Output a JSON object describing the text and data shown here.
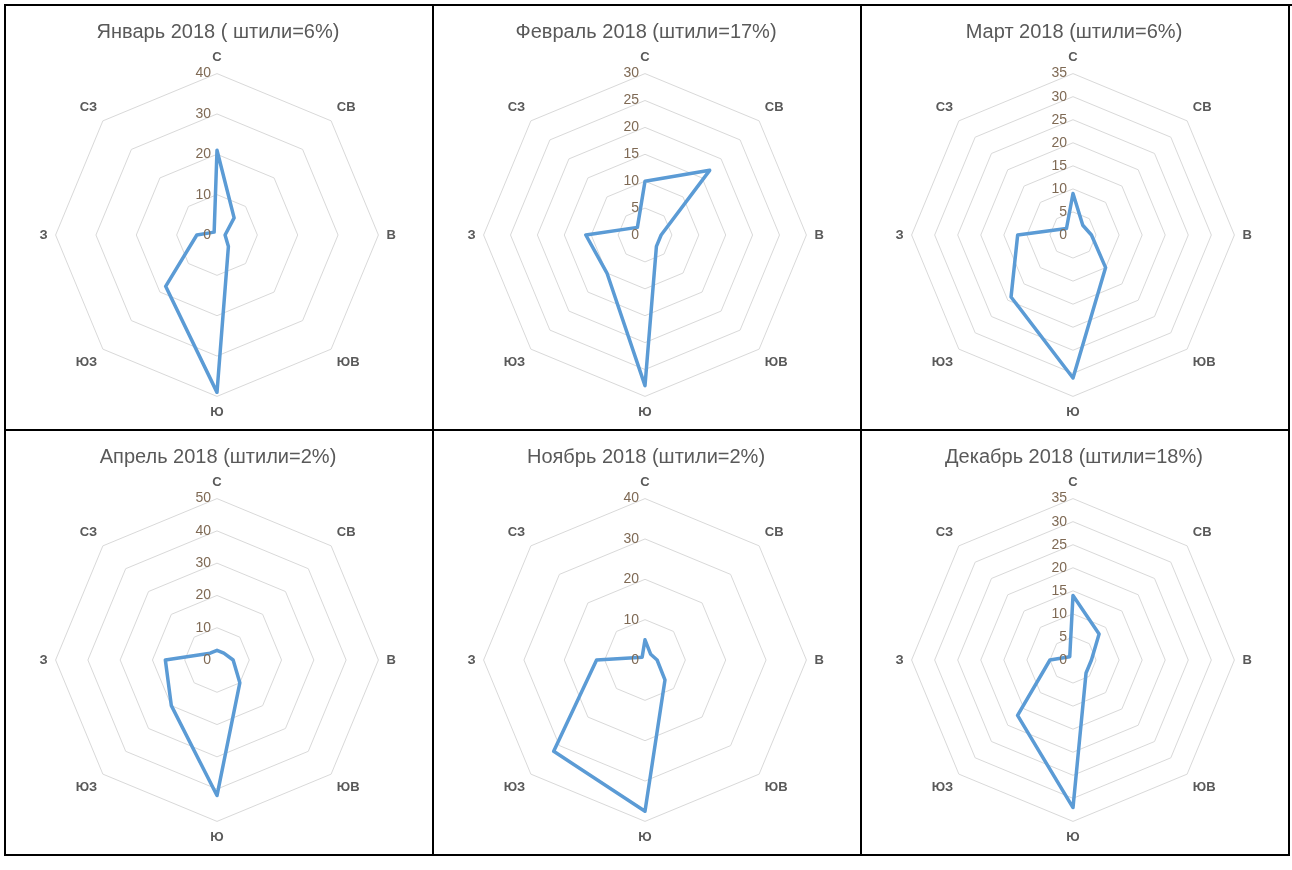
{
  "chart_data": [
    {
      "type": "radar",
      "title": "Январь 2018 ( штили=6%)",
      "categories": [
        "С",
        "СВ",
        "В",
        "ЮВ",
        "Ю",
        "ЮЗ",
        "З",
        "СЗ"
      ],
      "series": [
        {
          "color": "#5b9bd5",
          "values": [
            21,
            6,
            2,
            4,
            39,
            18,
            5,
            1
          ]
        }
      ],
      "ylim": [
        0,
        40
      ],
      "yticks": [
        0,
        10,
        20,
        30,
        40
      ],
      "grid": true,
      "marker": "none"
    },
    {
      "type": "radar",
      "title": "Февраль 2018 (штили=17%)",
      "categories": [
        "С",
        "СВ",
        "В",
        "ЮВ",
        "Ю",
        "ЮЗ",
        "З",
        "СЗ"
      ],
      "series": [
        {
          "color": "#5b9bd5",
          "values": [
            10,
            17,
            3,
            3,
            28,
            10,
            11,
            2
          ]
        }
      ],
      "ylim": [
        0,
        30
      ],
      "yticks": [
        0,
        5,
        10,
        15,
        20,
        25,
        30
      ],
      "grid": true,
      "marker": "none"
    },
    {
      "type": "radar",
      "title": "Март 2018 (штили=6%)",
      "categories": [
        "С",
        "СВ",
        "В",
        "ЮВ",
        "Ю",
        "ЮЗ",
        "З",
        "СЗ"
      ],
      "series": [
        {
          "color": "#5b9bd5",
          "values": [
            9,
            3,
            4,
            10,
            31,
            19,
            12,
            2
          ]
        }
      ],
      "ylim": [
        0,
        35
      ],
      "yticks": [
        0,
        5,
        10,
        15,
        20,
        25,
        30,
        35
      ],
      "grid": true,
      "marker": "none"
    },
    {
      "type": "radar",
      "title": "Апрель 2018 (штили=2%)",
      "categories": [
        "С",
        "СВ",
        "В",
        "ЮВ",
        "Ю",
        "ЮЗ",
        "З",
        "СЗ"
      ],
      "series": [
        {
          "color": "#5b9bd5",
          "values": [
            3,
            3,
            5,
            10,
            42,
            20,
            16,
            3
          ]
        }
      ],
      "ylim": [
        0,
        50
      ],
      "yticks": [
        0,
        10,
        20,
        30,
        40,
        50
      ],
      "grid": true,
      "marker": "none"
    },
    {
      "type": "radar",
      "title": "Ноябрь 2018 (штили=2%)",
      "categories": [
        "С",
        "СВ",
        "В",
        "ЮВ",
        "Ю",
        "ЮЗ",
        "З",
        "СЗ"
      ],
      "series": [
        {
          "color": "#5b9bd5",
          "values": [
            5,
            2,
            3,
            7,
            37.5,
            32,
            12,
            1
          ]
        }
      ],
      "ylim": [
        0,
        40
      ],
      "yticks": [
        0,
        10,
        20,
        30,
        40
      ],
      "grid": true,
      "marker": "none"
    },
    {
      "type": "radar",
      "title": "Декабрь 2018 (штили=18%)",
      "categories": [
        "С",
        "СВ",
        "В",
        "ЮВ",
        "Ю",
        "ЮЗ",
        "З",
        "СЗ"
      ],
      "series": [
        {
          "color": "#5b9bd5",
          "values": [
            14,
            8,
            4,
            4,
            32,
            17,
            5,
            1
          ]
        }
      ],
      "ylim": [
        0,
        35
      ],
      "yticks": [
        0,
        5,
        10,
        15,
        20,
        25,
        30,
        35
      ],
      "grid": true,
      "marker": "none"
    }
  ]
}
